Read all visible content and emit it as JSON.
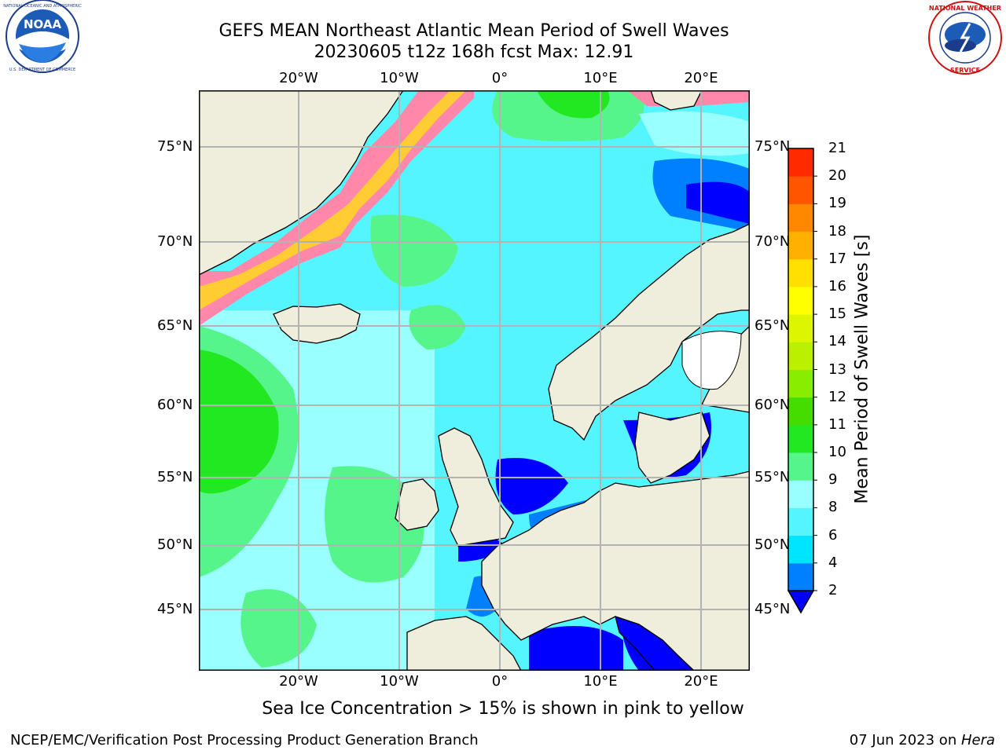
{
  "header": {
    "title_line1": "GEFS MEAN Northeast Atlantic Mean Period of Swell Waves",
    "title_line2": "20230605 t12z 168h fcst   Max: 12.91"
  },
  "logos": {
    "left": {
      "name": "NOAA",
      "ring_text": "NATIONAL OCEANIC AND ATMOSPHERIC ADMINISTRATION · U.S. DEPARTMENT OF COMMERCE"
    },
    "right": {
      "name": "NATIONAL WEATHER SERVICE"
    }
  },
  "map": {
    "lon_labels": [
      "20°W",
      "10°W",
      "0°",
      "10°E",
      "20°E"
    ],
    "lat_labels_left": [
      "75°N",
      "70°N",
      "65°N",
      "60°N",
      "55°N",
      "50°N",
      "45°N"
    ],
    "lat_labels_right": [
      "75°N",
      "70°N",
      "65°N",
      "60°N",
      "55°N",
      "50°N",
      "45°N"
    ],
    "land_color": "#efeedd",
    "ice_colors": [
      "#ff33cc",
      "#ff88aa",
      "#ffcc33",
      "#ffff33"
    ]
  },
  "colorbar": {
    "label": "Mean Period of Swell Waves [s]",
    "ticks": [
      "2",
      "4",
      "6",
      "8",
      "9",
      "10",
      "11",
      "12",
      "13",
      "14",
      "15",
      "16",
      "17",
      "18",
      "19",
      "20",
      "21"
    ],
    "colors": [
      "#0080ff",
      "#00e5ff",
      "#55f5ff",
      "#99ffff",
      "#55f58c",
      "#22e822",
      "#44dd00",
      "#88ee00",
      "#bbf000",
      "#ddf500",
      "#ffff00",
      "#ffe000",
      "#ffb000",
      "#ff8800",
      "#ff5500",
      "#ff2a00",
      "#ff0000"
    ],
    "under_color": "#0000ff"
  },
  "notes": {
    "sea_ice": "Sea Ice Concentration > 15% is shown in pink to yellow"
  },
  "footer": {
    "left": "NCEP/EMC/Verification Post Processing Product Generation Branch",
    "right_date": "07 Jun 2023 on ",
    "right_host": "Hera"
  }
}
